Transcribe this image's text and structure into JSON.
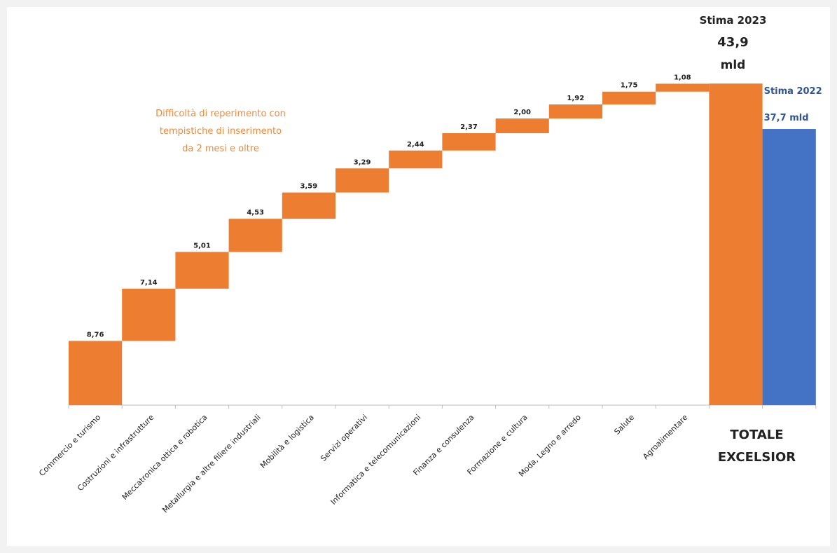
{
  "chart_data": {
    "type": "waterfall",
    "categories": [
      "Commercio e turismo",
      "Costruzioni e infrastrutture",
      "Meccatronica ottica e robotica",
      "Metallurgia e altre filiere industriali",
      "Mobilità e logistica",
      "Servizi operativi",
      "Informatica e telecomunicazioni",
      "Finanza e consulenza",
      "Formazione e cultura",
      "Moda, Legno e arredo",
      "Salute",
      "Agroalimentare"
    ],
    "value_labels": [
      "8,76",
      "7,14",
      "5,01",
      "4,53",
      "3,59",
      "3,29",
      "2,44",
      "2,37",
      "2,00",
      "1,92",
      "1,75",
      "1,08"
    ],
    "values": [
      8.76,
      7.14,
      5.01,
      4.53,
      3.59,
      3.29,
      2.44,
      2.37,
      2.0,
      1.92,
      1.75,
      1.08
    ],
    "total": {
      "label_lines": [
        "TOTALE",
        "EXCELSIOR"
      ],
      "value_2023": 43.9,
      "label_2023_lines": [
        "Stima 2023",
        "43,9",
        "mld"
      ],
      "value_2022": 37.7,
      "label_2022_lines": [
        "Stima 2022",
        "37,7 mld"
      ]
    },
    "annotation_lines": [
      "Difficoltà di reperimento con",
      "tempistiche di inserimento",
      "da 2 mesi e oltre"
    ],
    "colors": {
      "increase": "#ed7d31",
      "total_2023": "#ed7d31",
      "total_2022": "#4472c4",
      "label_2022": "#2f5597",
      "annotation": "#f08a3a"
    },
    "ylim": [
      0,
      44
    ]
  }
}
